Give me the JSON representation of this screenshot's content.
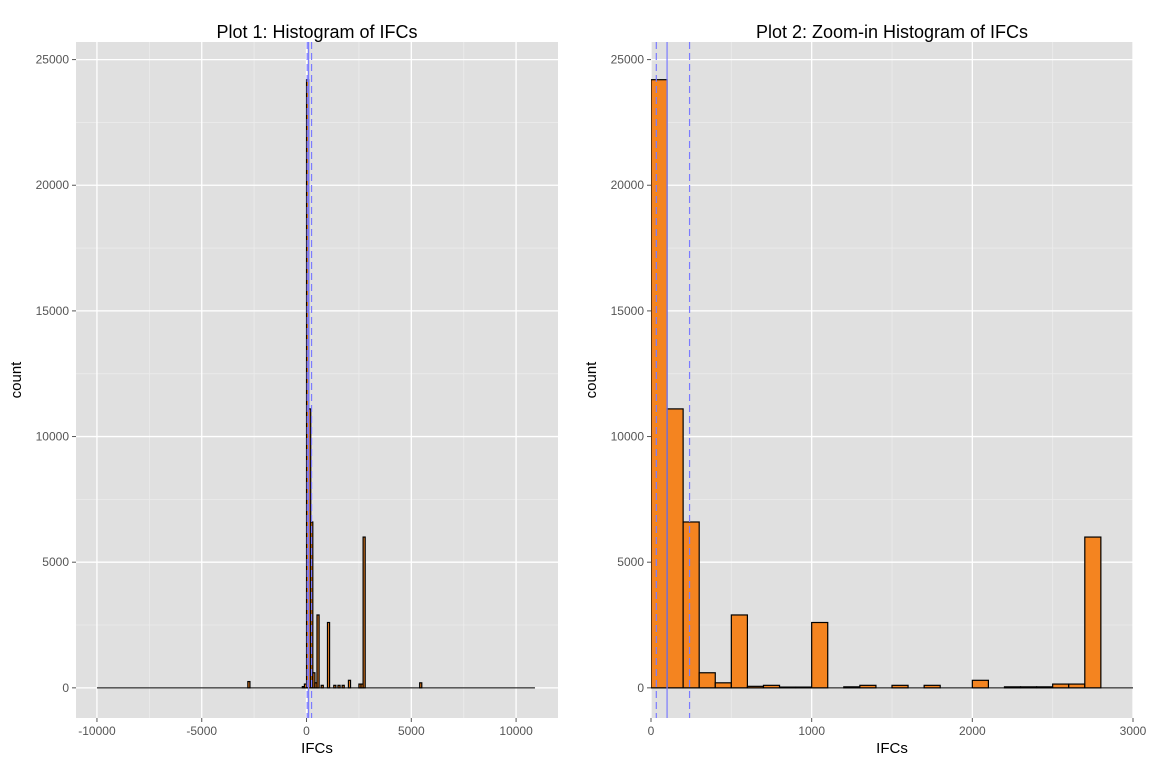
{
  "charts": [
    {
      "type": "bar",
      "title": "Plot 1: Histogram of IFCs",
      "xlabel": "IFCs",
      "ylabel": "count",
      "xlim": [
        -11000,
        12000
      ],
      "ylim": [
        -1200,
        25700
      ],
      "x_ticks": [
        -10000,
        -5000,
        0,
        5000,
        10000
      ],
      "y_ticks": [
        0,
        5000,
        10000,
        15000,
        20000,
        25000
      ],
      "x_tick_labels": [
        "-10000",
        "-5000",
        "0",
        "5000",
        "10000"
      ],
      "y_tick_labels": [
        "0",
        "5000",
        "10000",
        "15000",
        "20000",
        "25000"
      ],
      "bin_width": 100,
      "bar_fill": "#f48420",
      "bar_outline": "#000000",
      "panel_bg": "#e0e0e0",
      "grid": true,
      "baseline_range": [
        -10000,
        10900
      ],
      "bins": [
        {
          "x": 0,
          "count": 24200
        },
        {
          "x": 100,
          "count": 11100
        },
        {
          "x": 200,
          "count": 6600
        },
        {
          "x": 300,
          "count": 600
        },
        {
          "x": 400,
          "count": 200
        },
        {
          "x": 500,
          "count": 2900
        },
        {
          "x": 700,
          "count": 100
        },
        {
          "x": 1000,
          "count": 2600
        },
        {
          "x": 1300,
          "count": 100
        },
        {
          "x": 1500,
          "count": 100
        },
        {
          "x": 1700,
          "count": 100
        },
        {
          "x": 2000,
          "count": 300
        },
        {
          "x": 2500,
          "count": 150
        },
        {
          "x": 2600,
          "count": 150
        },
        {
          "x": 2700,
          "count": 6000
        },
        {
          "x": -2800,
          "count": 250
        },
        {
          "x": -200,
          "count": 50
        },
        {
          "x": -100,
          "count": 150
        },
        {
          "x": 5400,
          "count": 200
        }
      ],
      "vlines": [
        {
          "x": 33,
          "style": "dashed"
        },
        {
          "x": 100,
          "style": "solid"
        },
        {
          "x": 240,
          "style": "dashed"
        }
      ],
      "vline_color": "#7b7bff"
    },
    {
      "type": "bar",
      "title": "Plot 2: Zoom-in Histogram of IFCs",
      "xlabel": "IFCs",
      "ylabel": "count",
      "xlim": [
        0,
        3000
      ],
      "ylim": [
        -1200,
        25700
      ],
      "x_ticks": [
        0,
        1000,
        2000,
        3000
      ],
      "y_ticks": [
        0,
        5000,
        10000,
        15000,
        20000,
        25000
      ],
      "x_tick_labels": [
        "0",
        "1000",
        "2000",
        "3000"
      ],
      "y_tick_labels": [
        "0",
        "5000",
        "10000",
        "15000",
        "20000",
        "25000"
      ],
      "bin_width": 100,
      "bar_fill": "#f48420",
      "bar_outline": "#000000",
      "panel_bg": "#e0e0e0",
      "grid": true,
      "baseline_range": [
        0,
        3000
      ],
      "bins": [
        {
          "x": 0,
          "count": 24200
        },
        {
          "x": 100,
          "count": 11100
        },
        {
          "x": 200,
          "count": 6600
        },
        {
          "x": 300,
          "count": 600
        },
        {
          "x": 400,
          "count": 200
        },
        {
          "x": 500,
          "count": 2900
        },
        {
          "x": 600,
          "count": 60
        },
        {
          "x": 700,
          "count": 100
        },
        {
          "x": 800,
          "count": 30
        },
        {
          "x": 900,
          "count": 30
        },
        {
          "x": 1000,
          "count": 2600
        },
        {
          "x": 1200,
          "count": 40
        },
        {
          "x": 1300,
          "count": 100
        },
        {
          "x": 1500,
          "count": 100
        },
        {
          "x": 1700,
          "count": 100
        },
        {
          "x": 2000,
          "count": 300
        },
        {
          "x": 2200,
          "count": 40
        },
        {
          "x": 2300,
          "count": 40
        },
        {
          "x": 2400,
          "count": 40
        },
        {
          "x": 2500,
          "count": 150
        },
        {
          "x": 2600,
          "count": 150
        },
        {
          "x": 2700,
          "count": 6000
        }
      ],
      "vlines": [
        {
          "x": 33,
          "style": "dashed"
        },
        {
          "x": 100,
          "style": "solid"
        },
        {
          "x": 240,
          "style": "dashed"
        }
      ],
      "vline_color": "#7b7bff"
    }
  ]
}
